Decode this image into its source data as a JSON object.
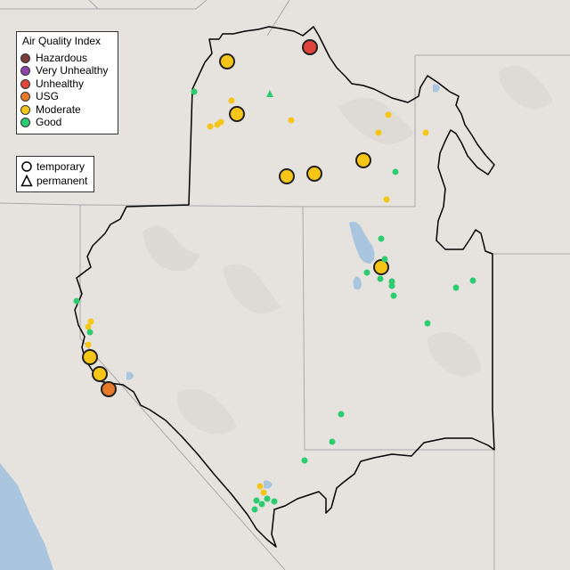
{
  "legend": {
    "title": "Air Quality Index",
    "categories": [
      {
        "label": "Hazardous",
        "color": "#7e3b3b"
      },
      {
        "label": "Very Unhealthy",
        "color": "#8e44ad"
      },
      {
        "label": "Unhealthy",
        "color": "#e0443a"
      },
      {
        "label": "USG",
        "color": "#e8782a"
      },
      {
        "label": "Moderate",
        "color": "#f5c518"
      },
      {
        "label": "Good",
        "color": "#2ecc71"
      }
    ],
    "monitor_types": [
      {
        "label": "temporary",
        "symbol": "circle-icon"
      },
      {
        "label": "permanent",
        "symbol": "triangle-icon"
      }
    ]
  },
  "colors": {
    "background": "#e6e3df",
    "boundary": "#000000",
    "state_lines": "#a8a8a8",
    "water": "#a9c6de"
  }
}
